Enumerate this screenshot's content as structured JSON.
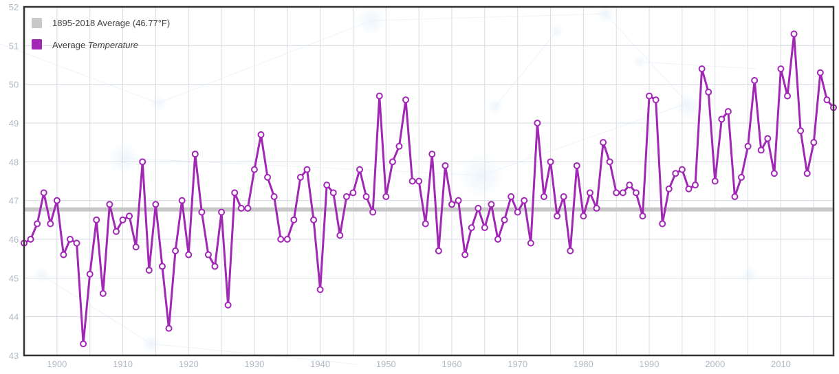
{
  "colors": {
    "series": "#a127b5",
    "reference": "#c8c8c8",
    "grid": "#d6dde3",
    "frame": "#333333",
    "tick": "#b0b9c3"
  },
  "legend": {
    "placement": "top-left",
    "items": [
      {
        "label": "1895-2018 Average (46.77°F)",
        "label_parts": [
          "1895-2018 Average (46.77°F)",
          ""
        ],
        "color": "#c8c8c8"
      },
      {
        "label": "Average Temperature",
        "label_parts": [
          "Average ",
          "Temperature"
        ],
        "color": "#a127b5"
      }
    ]
  },
  "chart_data": {
    "type": "line",
    "title": "",
    "xlabel": "",
    "ylabel": "",
    "xlim": [
      1895,
      2018
    ],
    "ylim": [
      43,
      52
    ],
    "grid": true,
    "x_ticks": [
      1900,
      1910,
      1920,
      1930,
      1940,
      1950,
      1960,
      1970,
      1980,
      1990,
      2000,
      2010
    ],
    "y_ticks": [
      43,
      44,
      45,
      46,
      47,
      48,
      49,
      50,
      51,
      52
    ],
    "reference_line": {
      "name": "1895-2018 Average (46.77°F)",
      "value": 46.77
    },
    "series": [
      {
        "name": "Average Temperature",
        "x": [
          1895,
          1896,
          1897,
          1898,
          1899,
          1900,
          1901,
          1902,
          1903,
          1904,
          1905,
          1906,
          1907,
          1908,
          1909,
          1910,
          1911,
          1912,
          1913,
          1914,
          1915,
          1916,
          1917,
          1918,
          1919,
          1920,
          1921,
          1922,
          1923,
          1924,
          1925,
          1926,
          1927,
          1928,
          1929,
          1930,
          1931,
          1932,
          1933,
          1934,
          1935,
          1936,
          1937,
          1938,
          1939,
          1940,
          1941,
          1942,
          1943,
          1944,
          1945,
          1946,
          1947,
          1948,
          1949,
          1950,
          1951,
          1952,
          1953,
          1954,
          1955,
          1956,
          1957,
          1958,
          1959,
          1960,
          1961,
          1962,
          1963,
          1964,
          1965,
          1966,
          1967,
          1968,
          1969,
          1970,
          1971,
          1972,
          1973,
          1974,
          1975,
          1976,
          1977,
          1978,
          1979,
          1980,
          1981,
          1982,
          1983,
          1984,
          1985,
          1986,
          1987,
          1988,
          1989,
          1990,
          1991,
          1992,
          1993,
          1994,
          1995,
          1996,
          1997,
          1998,
          1999,
          2000,
          2001,
          2002,
          2003,
          2004,
          2005,
          2006,
          2007,
          2008,
          2009,
          2010,
          2011,
          2012,
          2013,
          2014,
          2015,
          2016,
          2017,
          2018
        ],
        "values": [
          45.9,
          46.0,
          46.4,
          47.2,
          46.4,
          47.0,
          45.6,
          46.0,
          45.9,
          43.3,
          45.1,
          46.5,
          44.6,
          46.9,
          46.2,
          46.5,
          46.6,
          45.8,
          48.0,
          45.2,
          46.9,
          45.3,
          43.7,
          45.7,
          47.0,
          45.6,
          48.2,
          46.7,
          45.6,
          45.3,
          46.7,
          44.3,
          47.2,
          46.8,
          46.8,
          47.8,
          48.7,
          47.6,
          47.1,
          46.0,
          46.0,
          46.5,
          47.6,
          47.8,
          46.5,
          44.7,
          47.4,
          47.2,
          46.1,
          47.1,
          47.2,
          47.8,
          47.1,
          46.7,
          49.7,
          47.1,
          48.0,
          48.4,
          49.6,
          47.5,
          47.5,
          46.4,
          48.2,
          45.7,
          47.9,
          46.9,
          47.0,
          45.6,
          46.3,
          46.8,
          46.3,
          46.9,
          46.0,
          46.5,
          47.1,
          46.7,
          47.0,
          45.9,
          49.0,
          47.1,
          48.0,
          46.6,
          47.1,
          45.7,
          47.9,
          46.6,
          47.2,
          46.8,
          48.5,
          48.0,
          47.2,
          47.2,
          47.4,
          47.2,
          46.6,
          49.7,
          49.6,
          46.4,
          47.3,
          47.7,
          47.8,
          47.3,
          47.4,
          50.4,
          49.8,
          47.5,
          49.1,
          49.3,
          47.1,
          47.6,
          48.4,
          50.1,
          48.3,
          48.6,
          47.7,
          50.4,
          49.7,
          51.3,
          48.8,
          47.7,
          48.5,
          50.3,
          49.6,
          49.4
        ]
      }
    ]
  }
}
